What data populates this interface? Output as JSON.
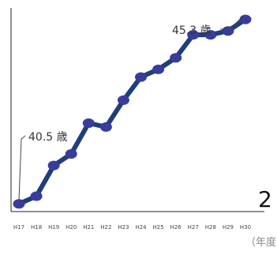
{
  "chart_data": {
    "type": "line",
    "title": "",
    "xlabel": "",
    "ylabel": "",
    "x": [
      "H17",
      "H18",
      "H19",
      "H20",
      "H21",
      "H22",
      "H23",
      "H24",
      "H25",
      "H26",
      "H27",
      "H28",
      "H29",
      "H30"
    ],
    "series": [
      {
        "values": [
          40.5,
          40.7,
          41.5,
          41.8,
          42.6,
          42.5,
          43.2,
          43.8,
          44.0,
          44.3,
          44.9,
          44.9,
          45.0,
          45.3
        ]
      }
    ],
    "ylim": [
      40.3,
      45.6
    ],
    "grid": false,
    "colors": {
      "line": "#1e3f7a",
      "marker": "#383c9c"
    },
    "annotations": [
      {
        "text": "40.5 歳",
        "index": 0
      },
      {
        "text": "45.3 歳",
        "index": 13
      }
    ]
  },
  "unit_label": "（年度",
  "page_number": "2"
}
